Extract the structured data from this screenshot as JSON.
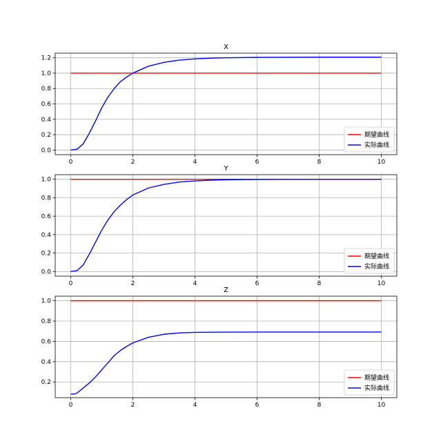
{
  "chart_data": [
    {
      "type": "line",
      "title": "X",
      "xlabel": "",
      "ylabel": "",
      "xlim": [
        -0.5,
        10.5
      ],
      "ylim": [
        -0.06,
        1.26
      ],
      "xticks": [
        0,
        2,
        4,
        6,
        8,
        10
      ],
      "yticks": [
        0.0,
        0.2,
        0.4,
        0.6,
        0.8,
        1.0,
        1.2
      ],
      "ytick_labels": [
        "0.0",
        "0.2",
        "0.4",
        "0.6",
        "0.8",
        "1.0",
        "1.2"
      ],
      "grid": true,
      "legend_position": "bottom-right",
      "series": [
        {
          "name": "期望曲线",
          "color": "#ff0000",
          "x": [
            0,
            10
          ],
          "y": [
            1.0,
            1.0
          ]
        },
        {
          "name": "实际曲线",
          "color": "#0000ff",
          "x": [
            0,
            0.2,
            0.4,
            0.6,
            0.8,
            1.0,
            1.2,
            1.4,
            1.6,
            1.8,
            2.0,
            2.5,
            3.0,
            3.5,
            4.0,
            4.5,
            5.0,
            6.0,
            7.0,
            8.0,
            10.0
          ],
          "y": [
            0.0,
            0.01,
            0.08,
            0.22,
            0.38,
            0.55,
            0.69,
            0.8,
            0.89,
            0.95,
            1.0,
            1.09,
            1.14,
            1.17,
            1.185,
            1.195,
            1.2,
            1.205,
            1.207,
            1.208,
            1.208
          ]
        }
      ]
    },
    {
      "type": "line",
      "title": "Y",
      "xlabel": "",
      "ylabel": "",
      "xlim": [
        -0.5,
        10.5
      ],
      "ylim": [
        -0.05,
        1.05
      ],
      "xticks": [
        0,
        2,
        4,
        6,
        8,
        10
      ],
      "yticks": [
        0.0,
        0.2,
        0.4,
        0.6,
        0.8,
        1.0
      ],
      "ytick_labels": [
        "0.0",
        "0.2",
        "0.4",
        "0.6",
        "0.8",
        "1.0"
      ],
      "grid": true,
      "legend_position": "bottom-right",
      "series": [
        {
          "name": "期望曲线",
          "color": "#ff0000",
          "x": [
            0,
            10
          ],
          "y": [
            1.0,
            1.0
          ]
        },
        {
          "name": "实际曲线",
          "color": "#0000ff",
          "x": [
            0,
            0.2,
            0.4,
            0.6,
            0.8,
            1.0,
            1.2,
            1.4,
            1.6,
            1.8,
            2.0,
            2.5,
            3.0,
            3.5,
            4.0,
            4.5,
            5.0,
            6.0,
            7.0,
            8.0,
            10.0
          ],
          "y": [
            0.0,
            0.01,
            0.07,
            0.19,
            0.32,
            0.45,
            0.56,
            0.65,
            0.72,
            0.78,
            0.83,
            0.905,
            0.945,
            0.97,
            0.982,
            0.99,
            0.994,
            0.998,
            0.999,
            1.0,
            1.0
          ]
        }
      ]
    },
    {
      "type": "line",
      "title": "Z",
      "xlabel": "",
      "ylabel": "",
      "xlim": [
        -0.5,
        10.5
      ],
      "ylim": [
        0.045,
        1.045
      ],
      "xticks": [
        0,
        2,
        4,
        6,
        8,
        10
      ],
      "yticks": [
        0.2,
        0.4,
        0.6,
        0.8,
        1.0
      ],
      "ytick_labels": [
        "0.2",
        "0.4",
        "0.6",
        "0.8",
        "1.0"
      ],
      "grid": true,
      "legend_position": "bottom-right",
      "series": [
        {
          "name": "期望曲线",
          "color": "#ff0000",
          "x": [
            0,
            10
          ],
          "y": [
            1.0,
            1.0
          ]
        },
        {
          "name": "实际曲线",
          "color": "#0000ff",
          "x": [
            0,
            0.1,
            0.2,
            0.4,
            0.6,
            0.8,
            1.0,
            1.2,
            1.4,
            1.6,
            1.8,
            2.0,
            2.5,
            3.0,
            3.5,
            4.0,
            4.5,
            5.0,
            6.0,
            7.0,
            8.0,
            10.0
          ],
          "y": [
            0.08,
            0.08,
            0.09,
            0.14,
            0.19,
            0.25,
            0.32,
            0.39,
            0.46,
            0.51,
            0.55,
            0.585,
            0.64,
            0.67,
            0.683,
            0.688,
            0.69,
            0.691,
            0.692,
            0.692,
            0.692,
            0.692
          ]
        }
      ]
    }
  ]
}
